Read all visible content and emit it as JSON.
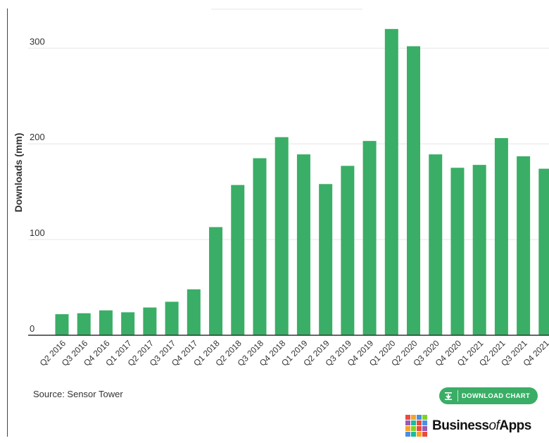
{
  "chart_data": {
    "type": "bar",
    "title": "",
    "xlabel": "",
    "ylabel": "Downloads (mm)",
    "ylim": [
      0,
      340
    ],
    "yticks": [
      0,
      100,
      200,
      300
    ],
    "grid": true,
    "color": "#3aae66",
    "categories": [
      "Q2 2016",
      "Q3 2016",
      "Q4 2016",
      "Q1 2017",
      "Q2 2017",
      "Q3 2017",
      "Q4 2017",
      "Q1 2018",
      "Q2 2018",
      "Q3 2018",
      "Q4 2018",
      "Q1 2019",
      "Q2 2019",
      "Q3 2019",
      "Q4 2019",
      "Q1 2020",
      "Q2 2020",
      "Q3 2020",
      "Q4 2020",
      "Q1 2021",
      "Q2 2021",
      "Q3 2021",
      "Q4 2021"
    ],
    "values": [
      22,
      23,
      26,
      24,
      29,
      35,
      48,
      113,
      157,
      185,
      207,
      189,
      158,
      177,
      203,
      320,
      302,
      189,
      175,
      178,
      206,
      187,
      174
    ]
  },
  "footer": {
    "source": "Source: Sensor Tower",
    "download_label": "DOWNLOAD CHART",
    "download_icon": "download-icon",
    "logo_text_a": "Business",
    "logo_text_of": "of",
    "logo_text_b": "Apps",
    "logo_colors": [
      "#e94b3c",
      "#f5a623",
      "#4a90e2",
      "#7ed321",
      "#9b59b6",
      "#1abc9c",
      "#e94b3c",
      "#4a90e2",
      "#f5a623",
      "#7ed321",
      "#e94b3c",
      "#9b59b6",
      "#4a90e2",
      "#1abc9c",
      "#f5a623",
      "#e94b3c"
    ]
  }
}
